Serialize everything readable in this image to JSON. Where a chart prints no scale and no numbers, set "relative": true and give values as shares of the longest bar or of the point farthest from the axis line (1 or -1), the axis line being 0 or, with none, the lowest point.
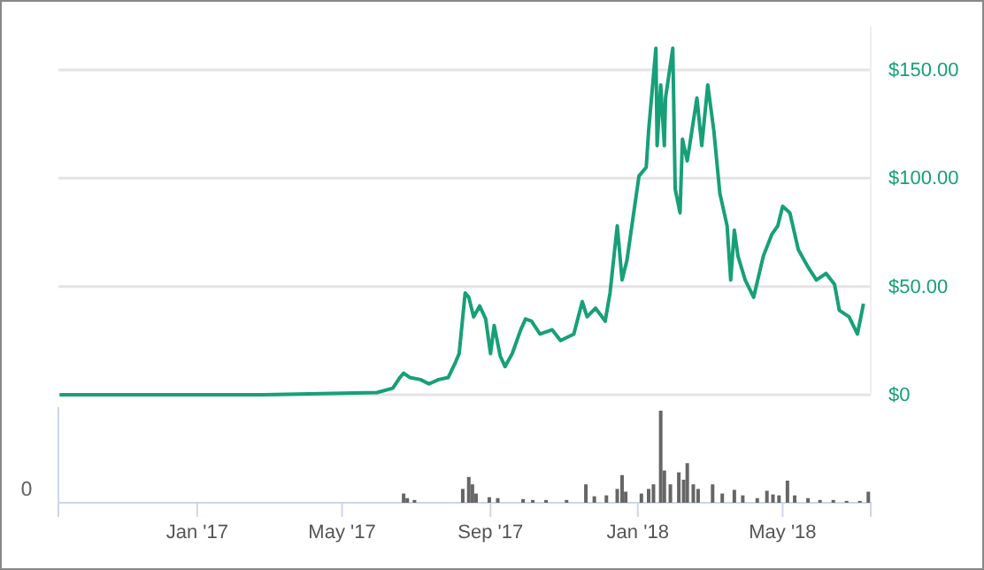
{
  "chart_data": [
    {
      "type": "line",
      "color": "#17a078",
      "grid": "y",
      "tick_labels": "y",
      "xlim": [
        "2016-09-08",
        "2018-07-13"
      ],
      "ylim": [
        0,
        170
      ],
      "yticks": [
        {
          "value": 0,
          "label": "$0"
        },
        {
          "value": 50,
          "label": "$50.00"
        },
        {
          "value": 100,
          "label": "$100.00"
        },
        {
          "value": 150,
          "label": "$150.00"
        }
      ],
      "x": [
        "2016-09-09",
        "2017-02-25",
        "2017-05-30",
        "2017-06-12",
        "2017-06-18",
        "2017-06-21",
        "2017-06-26",
        "2017-07-05",
        "2017-07-12",
        "2017-07-20",
        "2017-07-28",
        "2017-08-03",
        "2017-08-06",
        "2017-08-11",
        "2017-08-14",
        "2017-08-18",
        "2017-08-23",
        "2017-08-28",
        "2017-09-01",
        "2017-09-04",
        "2017-09-09",
        "2017-09-13",
        "2017-09-19",
        "2017-09-26",
        "2017-09-30",
        "2017-10-05",
        "2017-10-12",
        "2017-10-22",
        "2017-10-29",
        "2017-11-09",
        "2017-11-16",
        "2017-11-20",
        "2017-11-27",
        "2017-12-05",
        "2017-12-09",
        "2017-12-15",
        "2017-12-19",
        "2017-12-23",
        "2018-01-02",
        "2018-01-08",
        "2018-01-10",
        "2018-01-16",
        "2018-01-17",
        "2018-01-20",
        "2018-01-23",
        "2018-01-24",
        "2018-01-30",
        "2018-02-01",
        "2018-02-05",
        "2018-02-07",
        "2018-02-11",
        "2018-02-19",
        "2018-02-23",
        "2018-02-28",
        "2018-03-05",
        "2018-03-10",
        "2018-03-16",
        "2018-03-19",
        "2018-03-22",
        "2018-03-25",
        "2018-03-31",
        "2018-04-07",
        "2018-04-15",
        "2018-04-22",
        "2018-04-27",
        "2018-05-01",
        "2018-05-07",
        "2018-05-14",
        "2018-05-22",
        "2018-05-29",
        "2018-06-06",
        "2018-06-13",
        "2018-06-17",
        "2018-06-25",
        "2018-07-02",
        "2018-07-07"
      ],
      "values": [
        0,
        0,
        1,
        3,
        8,
        10,
        8,
        7,
        5,
        7,
        8,
        15,
        19,
        47,
        45,
        36,
        41,
        35,
        19,
        32,
        18,
        13,
        19,
        30,
        35,
        34,
        28,
        30,
        25,
        28,
        43,
        36,
        40,
        34,
        47,
        78,
        53,
        62,
        101,
        105,
        122,
        160,
        115,
        143,
        115,
        137,
        160,
        95,
        84,
        118,
        108,
        137,
        115,
        143,
        122,
        93,
        78,
        53,
        76,
        64,
        53,
        45,
        64,
        74,
        78,
        87,
        84,
        67,
        59,
        53,
        56,
        51,
        39,
        36,
        28,
        42
      ]
    },
    {
      "type": "bar",
      "color": "#666666",
      "relative": true,
      "tick_labels": "x",
      "xlim": [
        "2016-09-08",
        "2018-07-13"
      ],
      "xticks": [
        {
          "value": "2017-01-01",
          "label": "Jan '17"
        },
        {
          "value": "2017-05-01",
          "label": "May '17"
        },
        {
          "value": "2017-09-01",
          "label": "Sep '17"
        },
        {
          "value": "2018-01-01",
          "label": "Jan '18"
        },
        {
          "value": "2018-05-01",
          "label": "May '18"
        }
      ],
      "annotations": [
        "0"
      ],
      "x": [
        "2017-06-21",
        "2017-06-24",
        "2017-06-30",
        "2017-08-09",
        "2017-08-14",
        "2017-08-17",
        "2017-08-20",
        "2017-08-31",
        "2017-09-07",
        "2017-09-28",
        "2017-10-06",
        "2017-10-17",
        "2017-11-03",
        "2017-11-19",
        "2017-11-26",
        "2017-12-06",
        "2017-12-15",
        "2017-12-19",
        "2017-12-22",
        "2018-01-04",
        "2018-01-10",
        "2018-01-14",
        "2018-01-20",
        "2018-01-23",
        "2018-01-28",
        "2018-02-04",
        "2018-02-08",
        "2018-02-11",
        "2018-02-16",
        "2018-02-20",
        "2018-03-04",
        "2018-03-12",
        "2018-03-22",
        "2018-03-29",
        "2018-04-10",
        "2018-04-18",
        "2018-04-23",
        "2018-04-28",
        "2018-05-05",
        "2018-05-11",
        "2018-05-22",
        "2018-06-01",
        "2018-06-12",
        "2018-06-23",
        "2018-07-04",
        "2018-07-11"
      ],
      "values": [
        0.1,
        0.05,
        0.03,
        0.15,
        0.28,
        0.2,
        0.1,
        0.06,
        0.05,
        0.04,
        0.03,
        0.03,
        0.03,
        0.2,
        0.07,
        0.08,
        0.15,
        0.3,
        0.12,
        0.1,
        0.15,
        0.2,
        1,
        0.35,
        0.2,
        0.33,
        0.25,
        0.43,
        0.2,
        0.15,
        0.2,
        0.1,
        0.14,
        0.08,
        0.05,
        0.13,
        0.09,
        0.08,
        0.24,
        0.08,
        0.05,
        0.03,
        0.03,
        0.02,
        0.02,
        0.12
      ]
    }
  ]
}
